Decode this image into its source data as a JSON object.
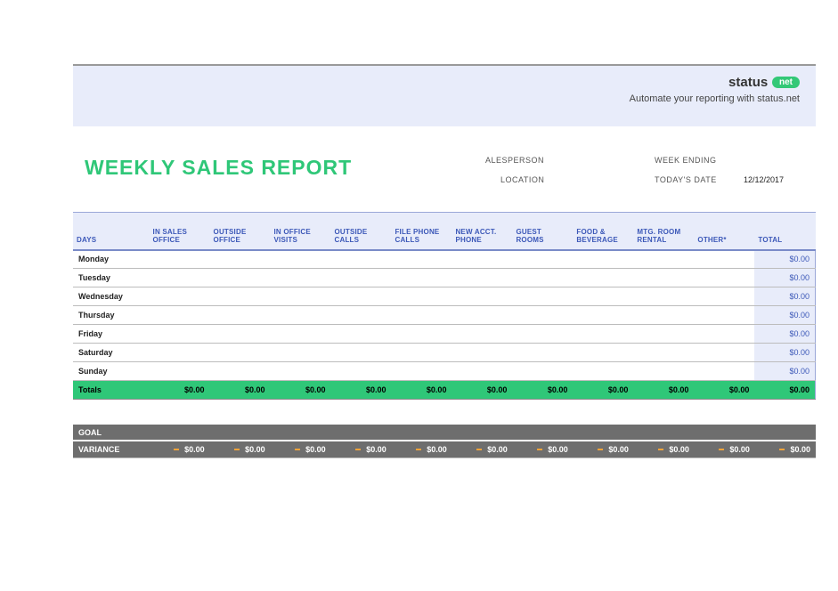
{
  "brand": {
    "name": "status",
    "badge": "net",
    "tagline": "Automate your reporting with status.net"
  },
  "title": "WEEKLY SALES REPORT",
  "meta": {
    "salesperson_label": "ALESPERSON",
    "location_label": "LOCATION",
    "week_ending_label": "WEEK ENDING",
    "todays_date_label": "TODAY'S DATE",
    "todays_date_value": "12/12/2017"
  },
  "columns": {
    "days": "DAYS",
    "c0": "IN SALES OFFICE",
    "c1": "OUTSIDE OFFICE",
    "c2": "IN OFFICE VISITS",
    "c3": "OUTSIDE CALLS",
    "c4": "FILE PHONE CALLS",
    "c5": "NEW ACCT. PHONE",
    "c6": "GUEST ROOMS",
    "c7": "FOOD & BEVERAGE",
    "c8": "MTG. ROOM RENTAL",
    "c9": "OTHER*",
    "total": "TOTAL"
  },
  "days": {
    "d0": "Monday",
    "d1": "Tuesday",
    "d2": "Wednesday",
    "d3": "Thursday",
    "d4": "Friday",
    "d5": "Saturday",
    "d6": "Sunday"
  },
  "row_total": "$0.00",
  "totals_label": "Totals",
  "totals_value": "$0.00",
  "goal_label": "GOAL",
  "variance_label": "VARIANCE",
  "variance_value": "$0.00",
  "colors": {
    "banner_bg": "#e8ecfa",
    "accent_green": "#2fc778",
    "header_text": "#3c58b8",
    "gv_bg": "#6e6e6e",
    "dash": "#f4a33a"
  }
}
